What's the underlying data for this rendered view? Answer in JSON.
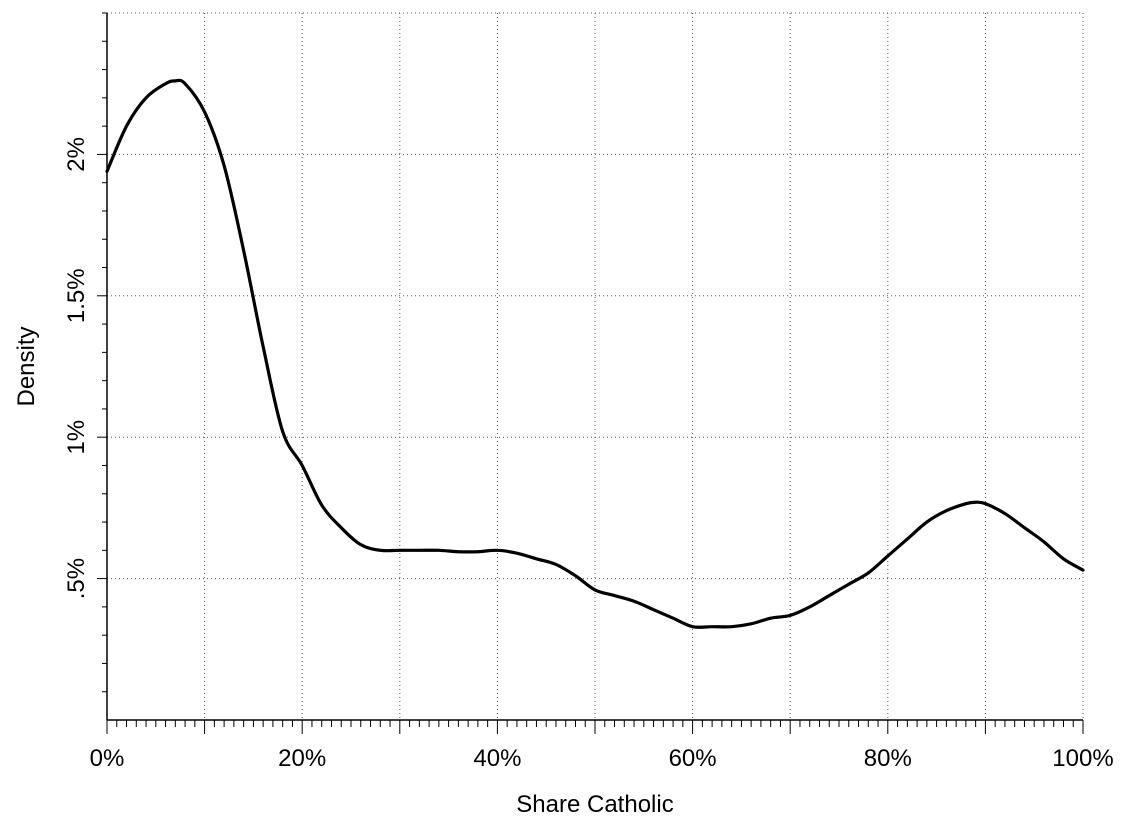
{
  "chart_data": {
    "type": "line",
    "title": "",
    "xlabel": "Share Catholic",
    "ylabel": "Density",
    "xlim": [
      0,
      100
    ],
    "ylim": [
      0,
      2.5
    ],
    "x_ticks": [
      0,
      20,
      40,
      60,
      80,
      100
    ],
    "x_tick_labels": [
      "0%",
      "20%",
      "40%",
      "60%",
      "80%",
      "100%"
    ],
    "x_minor_step": 1,
    "x_grid": [
      10,
      20,
      30,
      40,
      50,
      60,
      70,
      80,
      90,
      100
    ],
    "y_ticks": [
      0.5,
      1,
      1.5,
      2
    ],
    "y_tick_labels": [
      ".5%",
      "1%",
      "1.5%",
      "2%"
    ],
    "y_minor_step": 0.1,
    "grid": true,
    "grid_style": "dotted",
    "series": [
      {
        "color": "#000000",
        "x": [
          0,
          2,
          4,
          6,
          7,
          8,
          10,
          12,
          14,
          16,
          18,
          20,
          22,
          24,
          26,
          28,
          30,
          32,
          34,
          36,
          38,
          40,
          42,
          44,
          46,
          48,
          50,
          52,
          54,
          56,
          58,
          60,
          62,
          64,
          66,
          68,
          70,
          72,
          74,
          76,
          78,
          80,
          82,
          84,
          86,
          88,
          89,
          90,
          92,
          94,
          96,
          98,
          100
        ],
        "y": [
          1.94,
          2.1,
          2.2,
          2.25,
          2.26,
          2.25,
          2.15,
          1.96,
          1.66,
          1.32,
          1.02,
          0.9,
          0.76,
          0.68,
          0.62,
          0.6,
          0.6,
          0.6,
          0.6,
          0.595,
          0.595,
          0.6,
          0.59,
          0.57,
          0.55,
          0.51,
          0.46,
          0.44,
          0.42,
          0.39,
          0.36,
          0.33,
          0.33,
          0.33,
          0.34,
          0.36,
          0.37,
          0.4,
          0.44,
          0.48,
          0.52,
          0.58,
          0.64,
          0.7,
          0.74,
          0.765,
          0.77,
          0.765,
          0.73,
          0.68,
          0.63,
          0.57,
          0.53
        ]
      }
    ]
  }
}
